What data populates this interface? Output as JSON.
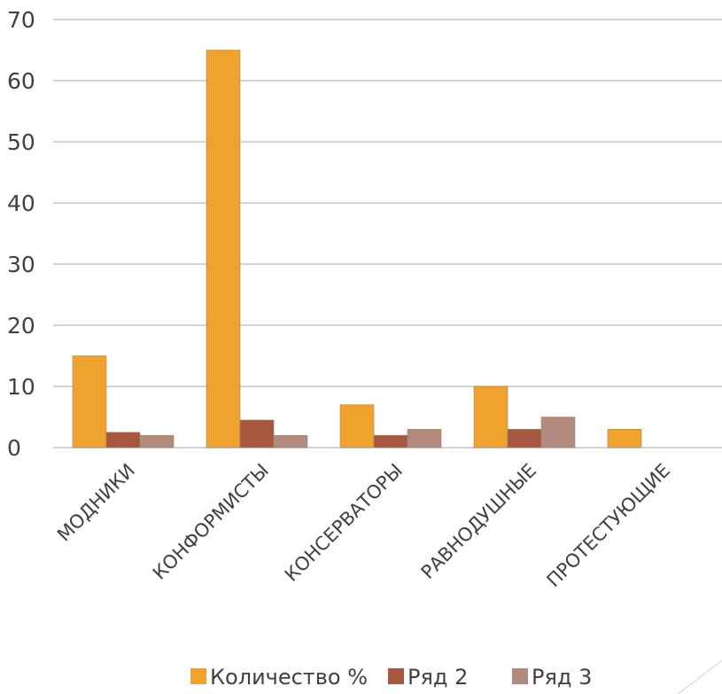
{
  "chart_data": {
    "type": "bar",
    "categories": [
      "МОДНИКИ",
      "КОНФОРМИСТЫ",
      "КОНСЕРВАТОРЫ",
      "РАВНОДУШНЫЕ",
      "ПРОТЕСТУЮЩИЕ"
    ],
    "series": [
      {
        "name": "Количество %",
        "color": "#F0A22E",
        "values": [
          15,
          65,
          7,
          10,
          3
        ]
      },
      {
        "name": "Ряд 2",
        "color": "#A5573F",
        "values": [
          2.5,
          4.5,
          2,
          3,
          0
        ]
      },
      {
        "name": "Ряд 3",
        "color": "#B38A7E",
        "values": [
          2,
          2,
          3,
          5,
          0
        ]
      }
    ],
    "title": "",
    "xlabel": "",
    "ylabel": "",
    "ylim": [
      0,
      70
    ],
    "yticks": [
      0,
      10,
      20,
      30,
      40,
      50,
      60,
      70
    ],
    "grid": true,
    "legend": "bottom"
  }
}
